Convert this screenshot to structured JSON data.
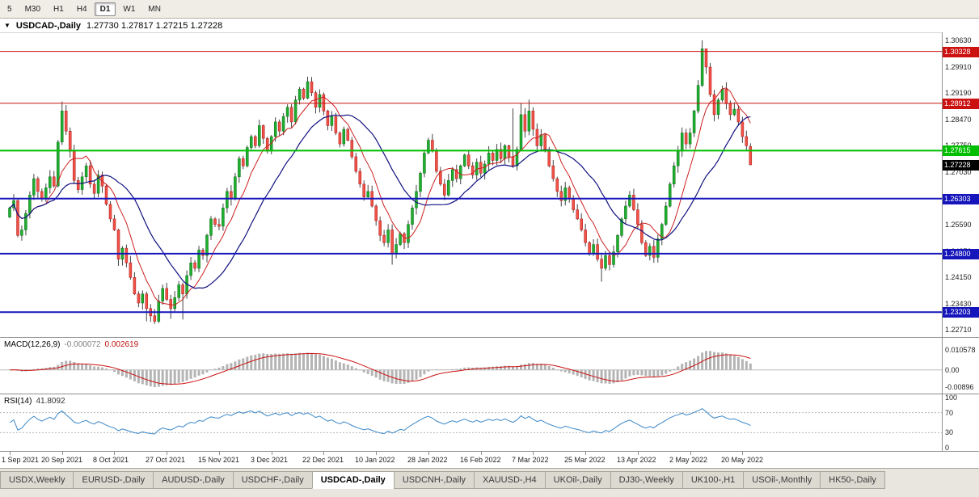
{
  "toolbar": {
    "timeframes": [
      {
        "label": "5",
        "active": false
      },
      {
        "label": "M30",
        "active": false
      },
      {
        "label": "H1",
        "active": false
      },
      {
        "label": "H4",
        "active": false
      },
      {
        "label": "D1",
        "active": true
      },
      {
        "label": "W1",
        "active": false
      },
      {
        "label": "MN",
        "active": false
      }
    ]
  },
  "chart_window": {
    "menu_icon": "▼",
    "symbol_title": "USDCAD-,Daily",
    "ohlc_text": "1.27730 1.27817 1.27215 1.27228"
  },
  "price_axis": {
    "values": [
      1.3063,
      1.2991,
      1.2919,
      1.2847,
      1.2775,
      1.2703,
      1.2631,
      1.2559,
      1.2487,
      1.2415,
      1.2343,
      1.2271
    ]
  },
  "levels": [
    {
      "value": 1.30328,
      "color": "#cc1111",
      "width": 1,
      "role": "resistance"
    },
    {
      "value": 1.28912,
      "color": "#cc1111",
      "width": 1,
      "role": "resistance"
    },
    {
      "value": 1.27615,
      "color": "#00bf00",
      "width": 2,
      "role": "pivot"
    },
    {
      "value": 1.26303,
      "color": "#1515bb",
      "width": 2,
      "role": "support"
    },
    {
      "value": 1.248,
      "color": "#1515bb",
      "width": 2,
      "role": "support"
    },
    {
      "value": 1.23203,
      "color": "#1515bb",
      "width": 2,
      "role": "support"
    }
  ],
  "current_price": {
    "value": 1.27228,
    "badge_color": "#000000"
  },
  "chart_data": {
    "type": "candlestick",
    "symbol": "USDCAD-",
    "timeframe": "Daily",
    "y_range": [
      1.225,
      1.3085
    ],
    "open0": 1.258,
    "closes": [
      1.2605,
      1.2625,
      1.253,
      1.2545,
      1.259,
      1.264,
      1.2685,
      1.265,
      1.263,
      1.266,
      1.269,
      1.2665,
      1.2785,
      1.287,
      1.2815,
      1.276,
      1.268,
      1.2655,
      1.269,
      1.272,
      1.267,
      1.2645,
      1.2695,
      1.2665,
      1.2615,
      1.2575,
      1.2545,
      1.2465,
      1.2495,
      1.2455,
      1.2415,
      1.237,
      1.2345,
      1.237,
      1.233,
      1.231,
      1.2295,
      1.235,
      1.2385,
      1.2355,
      1.233,
      1.236,
      1.2395,
      1.237,
      1.242,
      1.2455,
      1.244,
      1.249,
      1.2475,
      1.253,
      1.2575,
      1.256,
      1.2555,
      1.2605,
      1.265,
      1.263,
      1.269,
      1.274,
      1.272,
      1.277,
      1.28,
      1.2775,
      1.283,
      1.2795,
      1.276,
      1.28,
      1.284,
      1.2815,
      1.2855,
      1.288,
      1.284,
      1.29,
      1.293,
      1.2905,
      1.295,
      1.292,
      1.288,
      1.2915,
      1.287,
      1.283,
      1.2855,
      1.281,
      1.278,
      1.282,
      1.279,
      1.2745,
      1.2705,
      1.267,
      1.2635,
      1.265,
      1.261,
      1.257,
      1.253,
      1.251,
      1.2545,
      1.248,
      1.2505,
      1.2535,
      1.251,
      1.256,
      1.2605,
      1.265,
      1.27,
      1.2755,
      1.279,
      1.276,
      1.2705,
      1.267,
      1.264,
      1.268,
      1.271,
      1.2685,
      1.272,
      1.275,
      1.272,
      1.2695,
      1.273,
      1.27,
      1.2725,
      1.2755,
      1.2735,
      1.2765,
      1.274,
      1.2775,
      1.2745,
      1.272,
      1.2765,
      1.286,
      1.2815,
      1.287,
      1.282,
      1.2775,
      1.2805,
      1.276,
      1.272,
      1.2685,
      1.265,
      1.2625,
      1.266,
      1.263,
      1.26,
      1.2575,
      1.2545,
      1.251,
      1.248,
      1.2505,
      1.2465,
      1.244,
      1.2475,
      1.245,
      1.2485,
      1.253,
      1.2575,
      1.261,
      1.264,
      1.26,
      1.256,
      1.251,
      1.2475,
      1.25,
      1.247,
      1.252,
      1.256,
      1.261,
      1.267,
      1.272,
      1.276,
      1.281,
      1.278,
      1.281,
      1.287,
      1.294,
      1.304,
      1.299,
      1.2915,
      1.286,
      1.29,
      1.293,
      1.289,
      1.286,
      1.2875,
      1.284,
      1.28,
      1.2775,
      1.27228
    ],
    "wick_overrides": {
      "13": {
        "h": 1.2896
      },
      "34": {
        "l": 1.2295
      },
      "36": {
        "l": 1.2288
      },
      "40": {
        "l": 1.2302
      },
      "43": {
        "l": 1.23
      },
      "74": {
        "h": 1.2964
      },
      "95": {
        "l": 1.245
      },
      "104": {
        "h": 1.2797
      },
      "125": {
        "h": 1.2877
      },
      "127": {
        "h": 1.2891
      },
      "129": {
        "h": 1.2901
      },
      "147": {
        "l": 1.2403
      },
      "160": {
        "l": 1.2455
      },
      "172": {
        "h": 1.3063
      },
      "173": {
        "h": 1.3035
      },
      "184": {
        "h": 1.27817,
        "l": 1.27215
      }
    },
    "open_overrides": {
      "184": 1.2773
    },
    "moving_averages": [
      {
        "period": 8,
        "color": "#cc2020",
        "width": 1
      },
      {
        "period": 20,
        "color": "#101080",
        "width": 1.2
      }
    ],
    "colors": {
      "up_fill": "#1fae2e",
      "up_stroke": "#0b6e18",
      "down_fill": "#ef5348",
      "down_stroke": "#b01515",
      "wick": "#444444"
    }
  },
  "macd_panel": {
    "title": "MACD(12,26,9)",
    "value_main": "-0.000072",
    "value_signal": "0.002619",
    "params": [
      12,
      26,
      9
    ],
    "bar_color": "#b4b4b4",
    "signal_color": "#cc1111",
    "axis_labels": [
      {
        "text": "0.010578",
        "value": 0.010578
      },
      {
        "text": "0.00",
        "value": 0
      },
      {
        "text": "-0.00896",
        "value": -0.00896
      }
    ]
  },
  "rsi_panel": {
    "title": "RSI(14)",
    "value": "41.8092",
    "period": 14,
    "line_color": "#3a87c8",
    "levels": [
      70,
      30
    ],
    "axis_labels": [
      {
        "text": "100",
        "value": 100
      },
      {
        "text": "70",
        "value": 70
      },
      {
        "text": "30",
        "value": 30
      },
      {
        "text": "0",
        "value": 0
      }
    ]
  },
  "date_axis": {
    "candles_per_label": 13,
    "labels": [
      "1 Sep 2021",
      "20 Sep 2021",
      "8 Oct 2021",
      "27 Oct 2021",
      "15 Nov 2021",
      "3 Dec 2021",
      "22 Dec 2021",
      "10 Jan 2022",
      "28 Jan 2022",
      "16 Feb 2022",
      "7 Mar 2022",
      "25 Mar 2022",
      "13 Apr 2022",
      "2 May 2022",
      "20 May 2022"
    ]
  },
  "tabs": [
    {
      "label": "USDX,Weekly",
      "active": false
    },
    {
      "label": "EURUSD-,Daily",
      "active": false
    },
    {
      "label": "AUDUSD-,Daily",
      "active": false
    },
    {
      "label": "USDCHF-,Daily",
      "active": false
    },
    {
      "label": "USDCAD-,Daily",
      "active": true
    },
    {
      "label": "USDCNH-,Daily",
      "active": false
    },
    {
      "label": "XAUUSD-,H4",
      "active": false
    },
    {
      "label": "UKOil-,Daily",
      "active": false
    },
    {
      "label": "DJ30-,Weekly",
      "active": false
    },
    {
      "label": "UK100-,H1",
      "active": false
    },
    {
      "label": "USOil-,Monthly",
      "active": false
    },
    {
      "label": "HK50-,Daily",
      "active": false
    }
  ]
}
